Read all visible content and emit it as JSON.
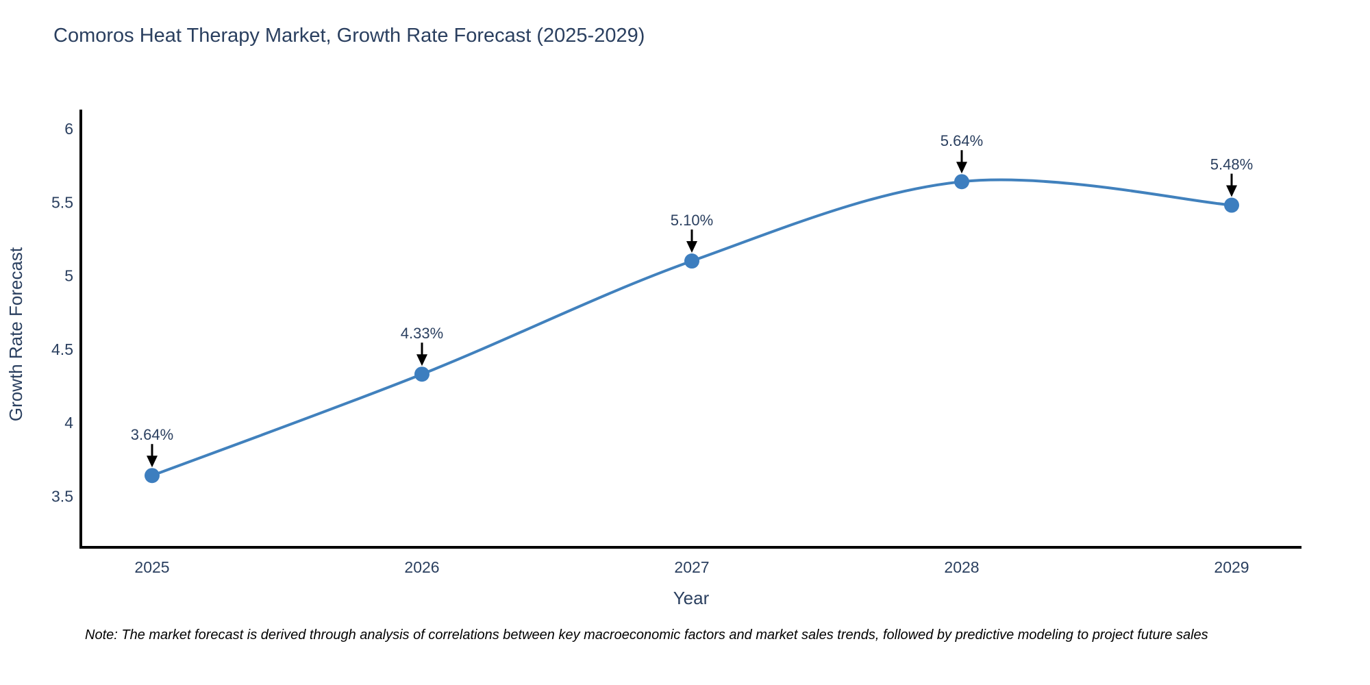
{
  "chart_data": {
    "type": "line",
    "title": "Comoros Heat Therapy Market, Growth Rate Forecast (2025-2029)",
    "xlabel": "Year",
    "ylabel": "Growth Rate Forecast",
    "x": [
      2025,
      2026,
      2027,
      2028,
      2029
    ],
    "series": [
      {
        "name": "Growth Rate Forecast",
        "values": [
          3.64,
          4.33,
          5.1,
          5.64,
          5.48
        ],
        "point_labels": [
          "3.64%",
          "4.33%",
          "5.10%",
          "5.64%",
          "5.48%"
        ]
      }
    ],
    "line_shape": "spline",
    "markers": true,
    "grid": false,
    "legend": false,
    "yticks": [
      3.5,
      4,
      4.5,
      5,
      5.5,
      6
    ],
    "ylim": [
      3.15,
      6.13
    ],
    "xlim": [
      2024.74,
      2029.26
    ],
    "colors": {
      "line": "#4181bd",
      "marker": "#3d7ebf",
      "axis_line": "#000000",
      "chart_text": "#2a3f5f",
      "annotation_arrow": "#000000",
      "background": "#ffffff"
    }
  },
  "note": "Note: The market forecast is derived through analysis of correlations between key macroeconomic factors and market sales trends, followed by predictive modeling to project future sales"
}
